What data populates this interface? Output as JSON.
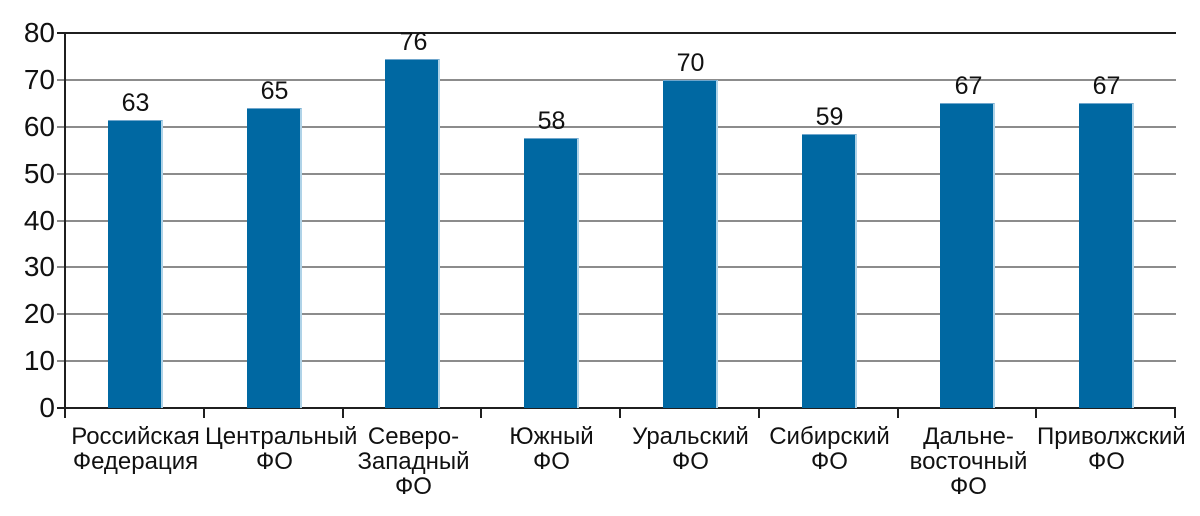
{
  "chart_data": {
    "type": "bar",
    "title": "",
    "xlabel": "",
    "ylabel": "",
    "categories": [
      "Российская\nФедерация",
      "Центральный\nФО",
      "Северо-\nЗападный\nФО",
      "Южный\nФО",
      "Уральский\nФО",
      "Сибирский\nФО",
      "Дальне-\nвосточный\nФО",
      "Приволжский\nФО"
    ],
    "values": [
      63,
      65,
      76,
      58,
      70,
      59,
      67,
      67
    ],
    "bar_heights_axis_units": [
      61.5,
      64,
      74.5,
      57.5,
      70,
      58.5,
      65,
      65
    ],
    "yticks": [
      0,
      10,
      20,
      30,
      40,
      50,
      60,
      70,
      80
    ],
    "ylim": [
      0,
      80
    ],
    "grid": "horizontal-only",
    "legend": "none",
    "colors": {
      "bar_fill": "#0068A2",
      "bar_edge_highlight": "#AFD3E8",
      "gridline": "#8C8C8C",
      "axis": "#1F1F1F",
      "text": "#111111",
      "background": "#FFFFFF"
    }
  }
}
